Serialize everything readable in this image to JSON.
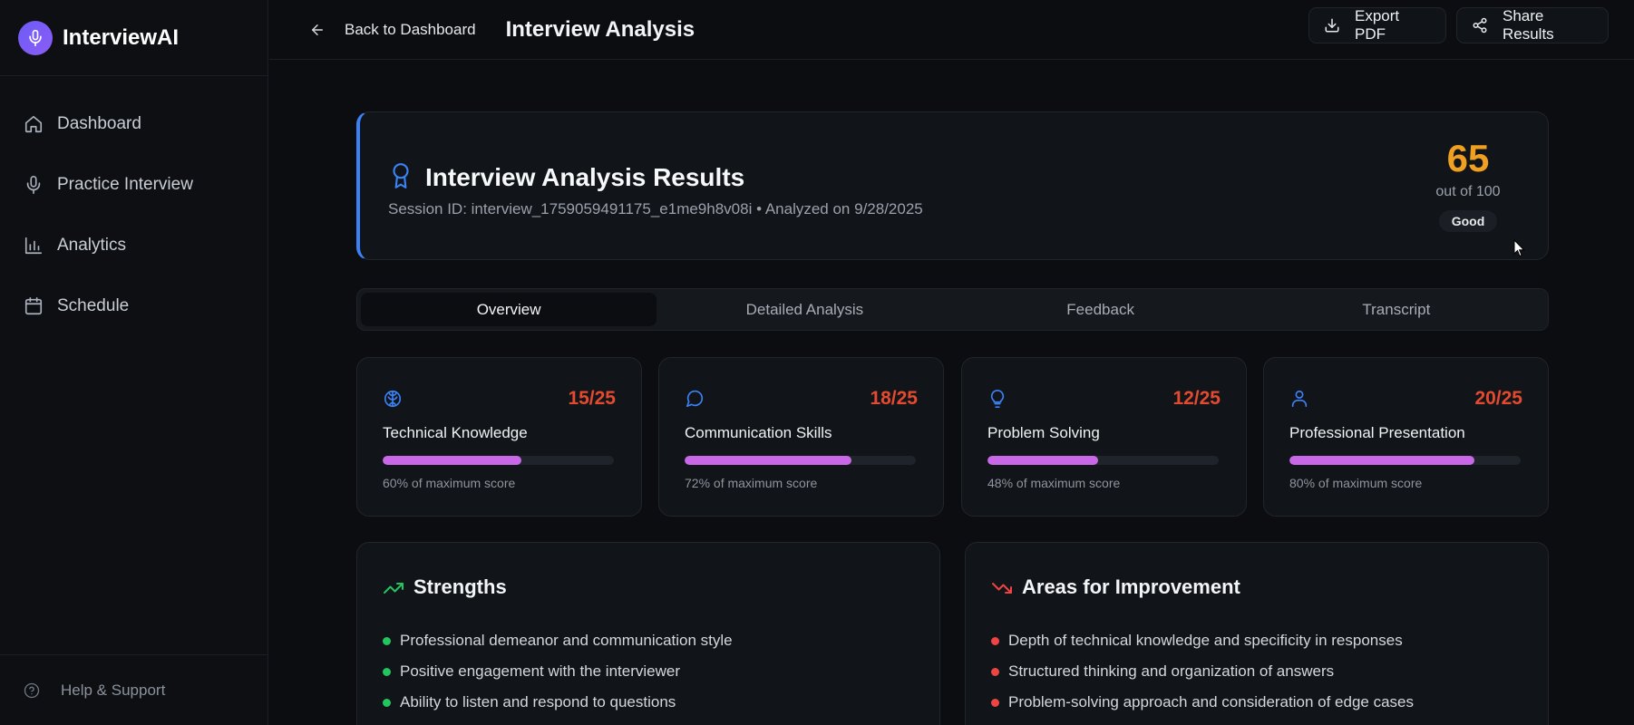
{
  "app": {
    "name": "InterviewAI",
    "brand_color": "#7c5cf6"
  },
  "sidebar": {
    "items": [
      {
        "label": "Dashboard",
        "icon": "home-icon"
      },
      {
        "label": "Practice Interview",
        "icon": "microphone-icon"
      },
      {
        "label": "Analytics",
        "icon": "bar-chart-icon"
      },
      {
        "label": "Schedule",
        "icon": "calendar-icon"
      }
    ],
    "footer": {
      "label": "Help & Support",
      "icon": "help-circle-icon"
    }
  },
  "header": {
    "back_label": "Back to Dashboard",
    "title": "Interview Analysis",
    "export_label": "Export PDF",
    "share_label": "Share Results"
  },
  "results": {
    "title": "Interview Analysis Results",
    "subtitle": "Session ID: interview_1759059491175_e1me9h8v08i • Analyzed on 9/28/2025",
    "score": "65",
    "score_out_of": "out of 100",
    "rating": "Good",
    "score_color": "#f0a020",
    "accent_color": "#3b82f6"
  },
  "tabs": [
    {
      "label": "Overview",
      "active": true
    },
    {
      "label": "Detailed Analysis",
      "active": false
    },
    {
      "label": "Feedback",
      "active": false
    },
    {
      "label": "Transcript",
      "active": false
    }
  ],
  "metrics": [
    {
      "label": "Technical Knowledge",
      "score": "15/25",
      "percent": 60,
      "caption": "60% of maximum score",
      "icon": "brain-icon"
    },
    {
      "label": "Communication Skills",
      "score": "18/25",
      "percent": 72,
      "caption": "72% of maximum score",
      "icon": "message-circle-icon"
    },
    {
      "label": "Problem Solving",
      "score": "12/25",
      "percent": 48,
      "caption": "48% of maximum score",
      "icon": "lightbulb-icon"
    },
    {
      "label": "Professional Presentation",
      "score": "20/25",
      "percent": 80,
      "caption": "80% of maximum score",
      "icon": "user-icon"
    }
  ],
  "strengths": {
    "title": "Strengths",
    "icon": "trending-up-icon",
    "color": "#22c55e",
    "items": [
      "Professional demeanor and communication style",
      "Positive engagement with the interviewer",
      "Ability to listen and respond to questions"
    ]
  },
  "improvements": {
    "title": "Areas for Improvement",
    "icon": "trending-down-icon",
    "color": "#ef4444",
    "items": [
      "Depth of technical knowledge and specificity in responses",
      "Structured thinking and organization of answers",
      "Problem-solving approach and consideration of edge cases"
    ]
  }
}
